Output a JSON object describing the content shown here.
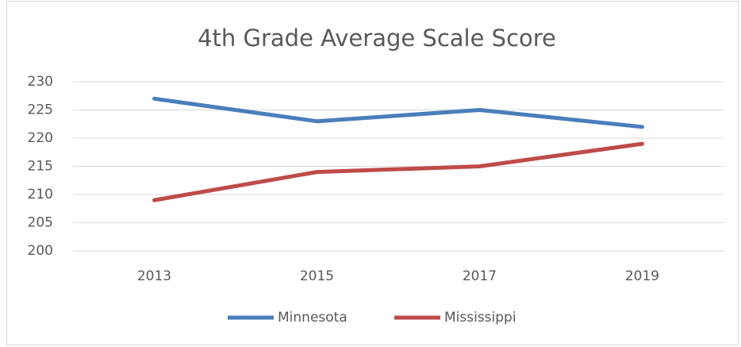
{
  "chart_data": {
    "type": "line",
    "title": "4th Grade Average Scale Score",
    "categories": [
      "2013",
      "2015",
      "2017",
      "2019"
    ],
    "series": [
      {
        "name": "Minnesota",
        "color": "#4a7ebb",
        "values": [
          227,
          223,
          225,
          222
        ]
      },
      {
        "name": "Mississippi",
        "color": "#be4b48",
        "values": [
          209,
          214,
          215,
          219
        ]
      }
    ],
    "ylim": [
      200,
      230
    ],
    "yticks": [
      200,
      205,
      210,
      215,
      220,
      225,
      230
    ],
    "grid": true,
    "legend": "bottom"
  }
}
